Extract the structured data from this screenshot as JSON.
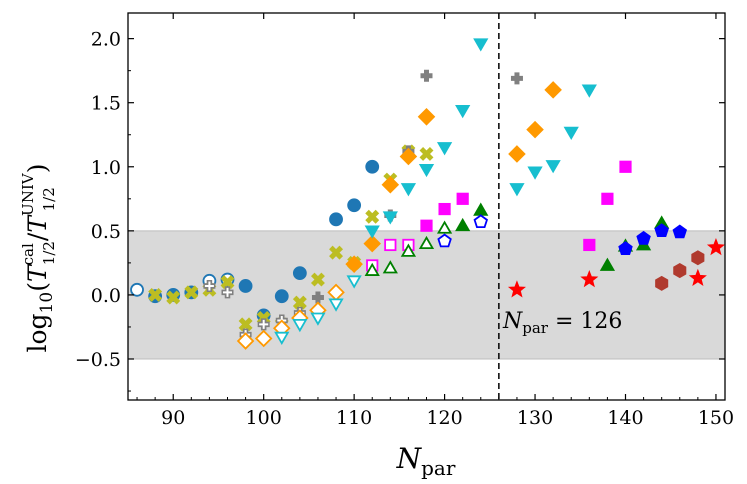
{
  "chart_data": {
    "type": "scatter",
    "title": "",
    "xlabel": "N_par",
    "ylabel": "log10(T_1/2^cal / T_1/2^UNIV)",
    "xlim": [
      85,
      151
    ],
    "ylim": [
      -0.82,
      2.2
    ],
    "x_ticks": [
      90,
      100,
      110,
      120,
      130,
      140,
      150
    ],
    "x_tick_labels": [
      "90",
      "100",
      "110",
      "120",
      "130",
      "140",
      "150"
    ],
    "y_ticks": [
      -0.5,
      0.0,
      0.5,
      1.0,
      1.5,
      2.0
    ],
    "y_tick_labels": [
      "−0.5",
      "0.0",
      "0.5",
      "1.0",
      "1.5",
      "2.0"
    ],
    "shaded_band": [
      -0.5,
      0.5
    ],
    "band_color": "#d9d9d9",
    "vline_x": 126,
    "annotation": {
      "text": "N_par = 126",
      "x": 126.4,
      "y": -0.2
    },
    "grid": false,
    "legend": "none",
    "series": [
      {
        "marker": "circle",
        "filled": false,
        "color": "#1f77b4",
        "points": [
          [
            86,
            0.04
          ],
          [
            94,
            0.11
          ],
          [
            96,
            0.12
          ]
        ]
      },
      {
        "marker": "circle",
        "filled": true,
        "color": "#1f77b4",
        "points": [
          [
            88,
            -0.01
          ],
          [
            90,
            0.0
          ],
          [
            92,
            0.02
          ],
          [
            98,
            0.07
          ],
          [
            100,
            -0.16
          ],
          [
            102,
            -0.01
          ],
          [
            104,
            0.17
          ],
          [
            108,
            0.59
          ],
          [
            110,
            0.7
          ],
          [
            112,
            1.0
          ]
        ]
      },
      {
        "marker": "x",
        "filled": true,
        "color": "#bcbd22",
        "points": [
          [
            88,
            0.0
          ],
          [
            90,
            -0.02
          ],
          [
            92,
            0.02
          ],
          [
            94,
            0.04
          ],
          [
            96,
            0.1
          ],
          [
            98,
            -0.23
          ],
          [
            100,
            -0.18
          ],
          [
            102,
            -0.23
          ],
          [
            104,
            -0.06
          ],
          [
            106,
            0.12
          ],
          [
            108,
            0.33
          ],
          [
            110,
            0.25
          ],
          [
            112,
            0.61
          ],
          [
            114,
            0.9
          ],
          [
            116,
            1.12
          ],
          [
            118,
            1.1
          ]
        ]
      },
      {
        "marker": "plus",
        "filled": false,
        "color": "#808080",
        "points": [
          [
            94,
            0.07
          ],
          [
            96,
            0.02
          ],
          [
            98,
            -0.31
          ],
          [
            100,
            -0.23
          ],
          [
            102,
            -0.2
          ],
          [
            104,
            -0.14
          ]
        ]
      },
      {
        "marker": "plus",
        "filled": true,
        "color": "#808080",
        "points": [
          [
            106,
            -0.02
          ],
          [
            114,
            0.62
          ],
          [
            116,
            1.12
          ],
          [
            118,
            1.71
          ],
          [
            128,
            1.69
          ]
        ]
      },
      {
        "marker": "diamond",
        "filled": false,
        "color": "#ff9900",
        "points": [
          [
            98,
            -0.36
          ],
          [
            100,
            -0.34
          ],
          [
            102,
            -0.26
          ],
          [
            104,
            -0.18
          ],
          [
            106,
            -0.12
          ],
          [
            108,
            0.02
          ]
        ]
      },
      {
        "marker": "diamond",
        "filled": true,
        "color": "#ff9900",
        "points": [
          [
            110,
            0.24
          ],
          [
            112,
            0.4
          ],
          [
            114,
            0.86
          ],
          [
            116,
            1.08
          ],
          [
            118,
            1.39
          ],
          [
            128,
            1.1
          ],
          [
            130,
            1.29
          ],
          [
            132,
            1.6
          ]
        ]
      },
      {
        "marker": "triangle-down",
        "filled": false,
        "color": "#17becf",
        "points": [
          [
            102,
            -0.33
          ],
          [
            104,
            -0.23
          ],
          [
            106,
            -0.18
          ],
          [
            108,
            -0.07
          ],
          [
            110,
            0.11
          ]
        ]
      },
      {
        "marker": "triangle-down",
        "filled": true,
        "color": "#17becf",
        "points": [
          [
            112,
            0.5
          ],
          [
            114,
            0.61
          ],
          [
            116,
            0.83
          ],
          [
            118,
            0.98
          ],
          [
            120,
            1.15
          ],
          [
            122,
            1.44
          ],
          [
            124,
            1.96
          ],
          [
            128,
            0.83
          ],
          [
            130,
            0.96
          ],
          [
            132,
            1.01
          ],
          [
            134,
            1.27
          ],
          [
            136,
            1.6
          ]
        ]
      },
      {
        "marker": "square",
        "filled": false,
        "color": "#ff00ff",
        "points": [
          [
            112,
            0.23
          ],
          [
            114,
            0.39
          ],
          [
            116,
            0.39
          ]
        ]
      },
      {
        "marker": "square",
        "filled": true,
        "color": "#ff00ff",
        "points": [
          [
            118,
            0.54
          ],
          [
            120,
            0.67
          ],
          [
            122,
            0.75
          ],
          [
            136,
            0.39
          ],
          [
            138,
            0.75
          ],
          [
            140,
            1.0
          ]
        ]
      },
      {
        "marker": "triangle-up",
        "filled": false,
        "color": "#008000",
        "points": [
          [
            112,
            0.19
          ],
          [
            114,
            0.21
          ],
          [
            116,
            0.34
          ],
          [
            118,
            0.4
          ],
          [
            120,
            0.52
          ]
        ]
      },
      {
        "marker": "triangle-up",
        "filled": true,
        "color": "#008000",
        "points": [
          [
            122,
            0.54
          ],
          [
            124,
            0.66
          ],
          [
            138,
            0.23
          ],
          [
            140,
            0.38
          ],
          [
            142,
            0.39
          ],
          [
            144,
            0.56
          ]
        ]
      },
      {
        "marker": "pentagon",
        "filled": false,
        "color": "#0000ff",
        "points": [
          [
            120,
            0.42
          ],
          [
            124,
            0.57
          ]
        ]
      },
      {
        "marker": "pentagon",
        "filled": true,
        "color": "#0000ff",
        "points": [
          [
            140,
            0.36
          ],
          [
            142,
            0.44
          ],
          [
            144,
            0.5
          ],
          [
            146,
            0.49
          ]
        ]
      },
      {
        "marker": "star",
        "filled": true,
        "color": "#ff0000",
        "points": [
          [
            128,
            0.04
          ],
          [
            136,
            0.12
          ],
          [
            148,
            0.13
          ],
          [
            150,
            0.37
          ]
        ]
      },
      {
        "marker": "hexagon",
        "filled": true,
        "color": "#b03a2e",
        "points": [
          [
            144,
            0.09
          ],
          [
            146,
            0.19
          ],
          [
            148,
            0.29
          ]
        ]
      }
    ]
  }
}
